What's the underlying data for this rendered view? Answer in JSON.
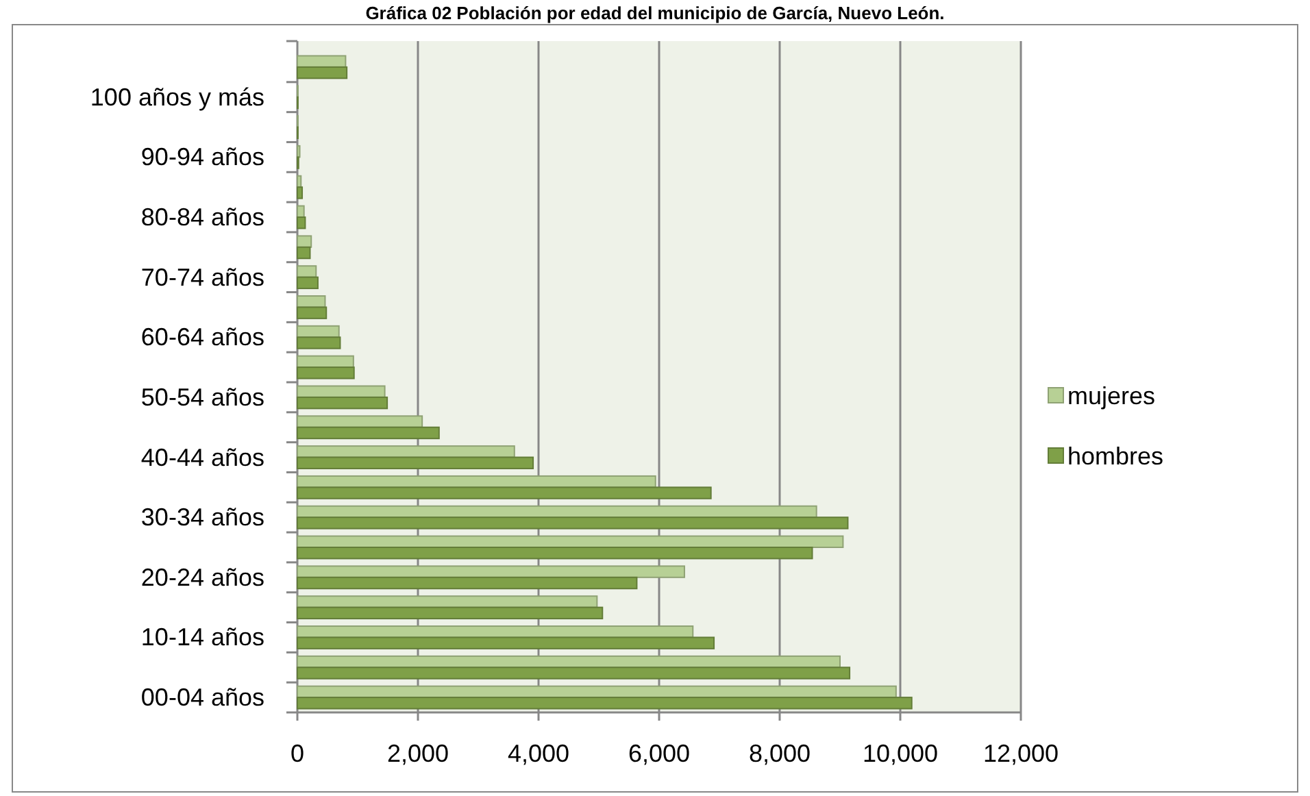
{
  "chart_data": {
    "type": "bar",
    "orientation": "horizontal",
    "title": "Gráfica 02 Población por edad del municipio de García, Nuevo León.",
    "categories": [
      null,
      "100 años y más",
      null,
      "90-94 años",
      null,
      "80-84 años",
      null,
      "70-74 años",
      null,
      "60-64 años",
      null,
      "50-54 años",
      null,
      "40-44 años",
      null,
      "30-34 años",
      null,
      "20-24 años",
      null,
      "10-14 años",
      null,
      "00-04 años"
    ],
    "series": [
      {
        "name": "mujeres",
        "color": "#b7d095",
        "values": [
          800,
          10,
          10,
          40,
          60,
          110,
          230,
          310,
          460,
          690,
          930,
          1450,
          2070,
          3600,
          5940,
          8610,
          9050,
          6420,
          4970,
          6560,
          9000,
          9930
        ]
      },
      {
        "name": "hombres",
        "color": "#7fa048",
        "values": [
          820,
          10,
          10,
          20,
          80,
          130,
          210,
          340,
          480,
          710,
          940,
          1490,
          2350,
          3910,
          6860,
          9130,
          8540,
          5630,
          5060,
          6910,
          9160,
          10190
        ]
      }
    ],
    "xlim": [
      0,
      12000
    ],
    "xticks": [
      {
        "value": 0,
        "label": "0"
      },
      {
        "value": 2000,
        "label": "2,000"
      },
      {
        "value": 4000,
        "label": "4,000"
      },
      {
        "value": 6000,
        "label": "6,000"
      },
      {
        "value": 8000,
        "label": "8,000"
      },
      {
        "value": 10000,
        "label": "10,000"
      },
      {
        "value": 12000,
        "label": "12,000"
      }
    ],
    "grid": "x",
    "legend": "right"
  }
}
